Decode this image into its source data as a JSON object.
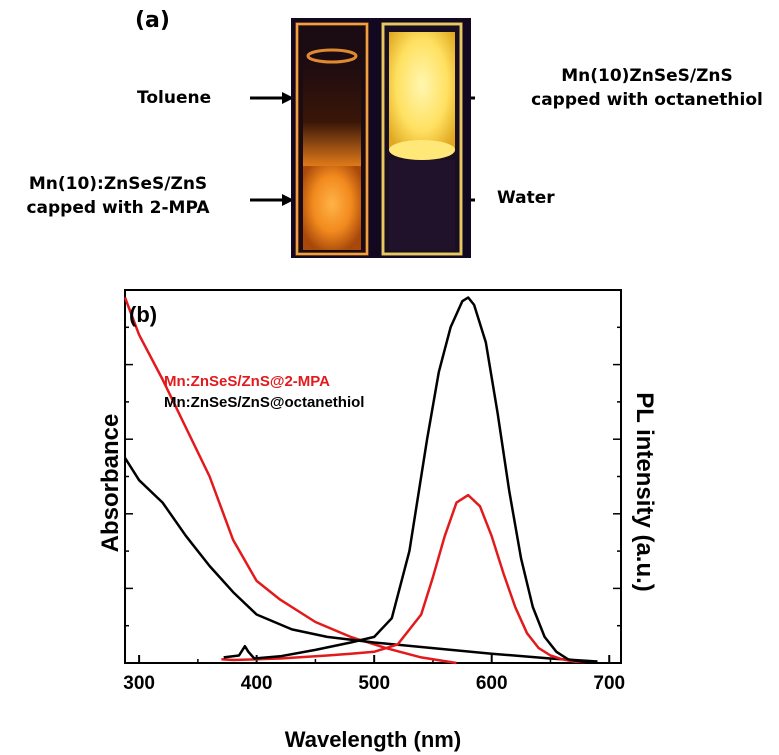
{
  "panel_a": {
    "label": "(a)",
    "left_labels": {
      "top": "Toluene",
      "bottom_line1": "Mn(10):ZnSeS/ZnS",
      "bottom_line2": "capped with 2-MPA"
    },
    "right_labels": {
      "top_line1": "Mn(10)ZnSeS/ZnS",
      "top_line2": "capped with octanethiol",
      "bottom": "Water"
    },
    "colors": {
      "photo_bg": "#120820",
      "orange_glow": "#f28a1e",
      "yellow_glow": "#ffd84a"
    }
  },
  "chart_data": {
    "type": "line",
    "panel_label": "(b)",
    "xlabel": "Wavelength (nm)",
    "ylabel_left": "Absorbance",
    "ylabel_right": "PL intensity (a.u.)",
    "xlim": [
      288,
      710
    ],
    "ylim": [
      0,
      1.0
    ],
    "xticks": [
      300,
      400,
      500,
      600,
      700
    ],
    "grid": false,
    "legend_position": "upper-left",
    "legend": [
      {
        "name": "Mn:ZnSeS/ZnS@2-MPA",
        "color": "#e31a1c"
      },
      {
        "name": "Mn:ZnSeS/ZnS@octanethiol",
        "color": "#000000"
      }
    ],
    "series": [
      {
        "name": "Mn:ZnSeS/ZnS@2-MPA absorbance",
        "color": "#e31a1c",
        "x": [
          288,
          300,
          320,
          340,
          360,
          380,
          400,
          420,
          450,
          480,
          510,
          540,
          570
        ],
        "y": [
          0.98,
          0.88,
          0.76,
          0.63,
          0.5,
          0.33,
          0.22,
          0.17,
          0.11,
          0.07,
          0.04,
          0.015,
          0.0
        ]
      },
      {
        "name": "Mn:ZnSeS/ZnS@octanethiol absorbance",
        "color": "#000000",
        "x": [
          288,
          300,
          320,
          340,
          360,
          380,
          400,
          430,
          460,
          500,
          550,
          600,
          650,
          690
        ],
        "y": [
          0.55,
          0.49,
          0.43,
          0.34,
          0.26,
          0.19,
          0.13,
          0.09,
          0.07,
          0.055,
          0.04,
          0.025,
          0.012,
          0.004
        ]
      },
      {
        "name": "Mn:ZnSeS/ZnS@2-MPA PL",
        "color": "#e31a1c",
        "x": [
          370,
          380,
          400,
          420,
          440,
          460,
          480,
          500,
          520,
          540,
          550,
          560,
          570,
          580,
          590,
          600,
          610,
          620,
          630,
          640,
          650,
          660,
          670,
          680
        ],
        "y": [
          0.01,
          0.008,
          0.01,
          0.012,
          0.016,
          0.02,
          0.025,
          0.03,
          0.05,
          0.13,
          0.23,
          0.34,
          0.43,
          0.45,
          0.42,
          0.34,
          0.24,
          0.15,
          0.08,
          0.04,
          0.02,
          0.01,
          0.004,
          0.002
        ]
      },
      {
        "name": "Mn:ZnSeS/ZnS@octanethiol PL",
        "color": "#000000",
        "x": [
          372,
          385,
          390,
          393,
          398,
          420,
          450,
          480,
          500,
          515,
          530,
          545,
          555,
          565,
          575,
          580,
          585,
          595,
          605,
          615,
          625,
          635,
          645,
          655,
          665,
          680
        ],
        "y": [
          0.015,
          0.02,
          0.045,
          0.03,
          0.012,
          0.018,
          0.035,
          0.055,
          0.07,
          0.12,
          0.3,
          0.6,
          0.78,
          0.9,
          0.97,
          0.98,
          0.96,
          0.86,
          0.67,
          0.46,
          0.28,
          0.15,
          0.07,
          0.03,
          0.01,
          0.002
        ]
      }
    ]
  }
}
